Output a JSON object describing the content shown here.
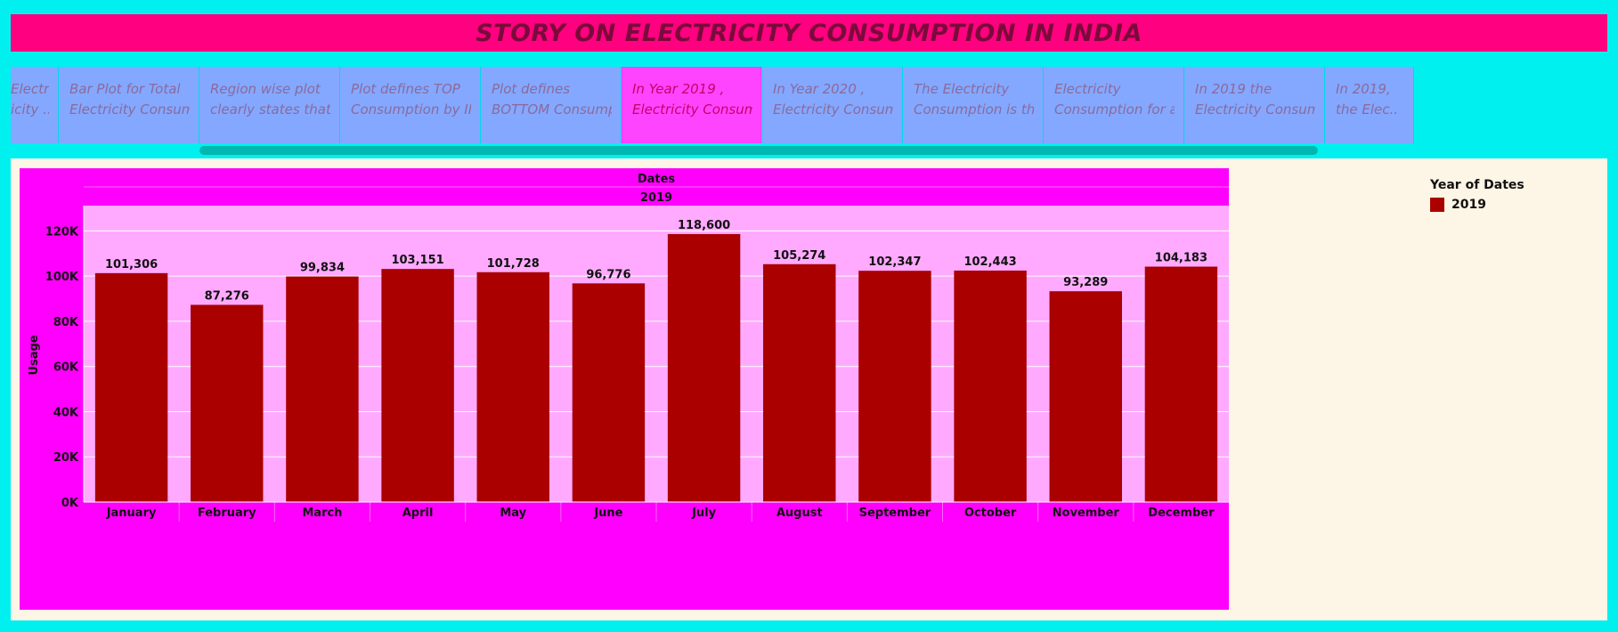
{
  "header": {
    "title": "STORY ON ELECTRICITY CONSUMPTION IN INDIA"
  },
  "story_points": [
    {
      "lines": [
        "Electr",
        "icity .."
      ],
      "active": false
    },
    {
      "lines": [
        "Bar Plot for Total",
        "Electricity Consump.."
      ],
      "active": false
    },
    {
      "lines": [
        "Region wise plot",
        "clearly states that t.."
      ],
      "active": false
    },
    {
      "lines": [
        "Plot defines TOP",
        "Consumption by IN.."
      ],
      "active": false
    },
    {
      "lines": [
        "Plot defines",
        "BOTTOM Consumpti.."
      ],
      "active": false
    },
    {
      "lines": [
        "In Year 2019 ,",
        "Electricity Consump.."
      ],
      "active": true
    },
    {
      "lines": [
        "In Year 2020 ,",
        "Electricity Consump.."
      ],
      "active": false
    },
    {
      "lines": [
        "The Electricity",
        "Consumption is the .."
      ],
      "active": false
    },
    {
      "lines": [
        "Electricity",
        "Consumption for a p.."
      ],
      "active": false
    },
    {
      "lines": [
        "In 2019 the",
        "Electricity Consump.."
      ],
      "active": false
    },
    {
      "lines": [
        "In 2019,",
        "the Elec.."
      ],
      "active": false
    }
  ],
  "legend": {
    "title": "Year of Dates",
    "items": [
      {
        "label": "2019",
        "color": "#aa0000"
      }
    ]
  },
  "chart_data": {
    "type": "bar",
    "column_header": "Dates",
    "column_value": "2019",
    "ylabel": "Usage",
    "ylim": [
      0,
      130000
    ],
    "yticks": [
      0,
      20000,
      40000,
      60000,
      80000,
      100000,
      120000
    ],
    "ytick_labels": [
      "0K",
      "20K",
      "40K",
      "60K",
      "80K",
      "100K",
      "120K"
    ],
    "categories": [
      "January",
      "February",
      "March",
      "April",
      "May",
      "June",
      "July",
      "August",
      "September",
      "October",
      "November",
      "December"
    ],
    "series": [
      {
        "name": "2019",
        "values": [
          101306,
          87276,
          99834,
          103151,
          101728,
          96776,
          118600,
          105274,
          102347,
          102443,
          93289,
          104183
        ],
        "labels": [
          "101,306",
          "87,276",
          "99,834",
          "103,151",
          "101,728",
          "96,776",
          "118,600",
          "105,274",
          "102,347",
          "102,443",
          "93,289",
          "104,183"
        ]
      }
    ],
    "grid": true,
    "legend_position": "right",
    "colors": {
      "bar": "#aa0000",
      "plot_bg": "#ffaaff",
      "frame": "#ff00ff",
      "axis_text": "#111111"
    }
  }
}
